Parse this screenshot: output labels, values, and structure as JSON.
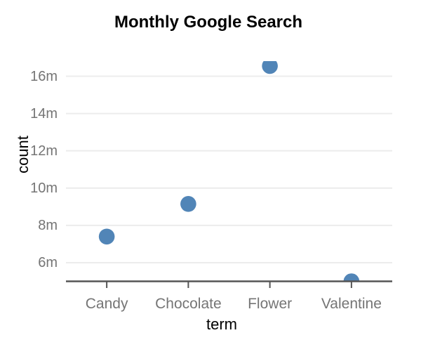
{
  "chart_data": {
    "type": "scatter",
    "title": "Monthly Google Search",
    "xlabel": "term",
    "ylabel": "count",
    "categories": [
      "Candy",
      "Chocolate",
      "Flower",
      "Valentine"
    ],
    "series": [
      {
        "name": "count",
        "values_millions": [
          7.4,
          9.15,
          16.55,
          5.0
        ]
      }
    ],
    "y_ticks": [
      {
        "value_millions": 6,
        "label": "6m"
      },
      {
        "value_millions": 8,
        "label": "8m"
      },
      {
        "value_millions": 10,
        "label": "10m"
      },
      {
        "value_millions": 12,
        "label": "12m"
      },
      {
        "value_millions": 14,
        "label": "14m"
      },
      {
        "value_millions": 16,
        "label": "16m"
      }
    ],
    "ylim_millions": [
      5.0,
      16.81
    ],
    "grid": true,
    "legend": false,
    "colors": {
      "point": "#5185B7",
      "gridline": "#ECECEC",
      "axis": "#555555",
      "tick_label": "#757575",
      "text": "#000000"
    }
  }
}
